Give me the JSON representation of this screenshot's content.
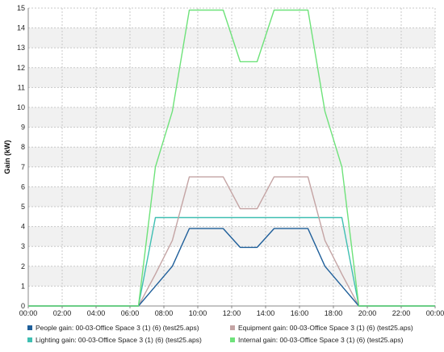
{
  "chart_data": {
    "type": "line",
    "title": "",
    "xlabel": "",
    "ylabel": "Gain (kW)",
    "xlim": [
      0,
      24
    ],
    "ylim": [
      0,
      15
    ],
    "x_ticks": [
      "00:00",
      "02:00",
      "04:00",
      "06:00",
      "08:00",
      "10:00",
      "12:00",
      "14:00",
      "16:00",
      "18:00",
      "20:00",
      "22:00",
      "00:00"
    ],
    "y_ticks": [
      "0",
      "1",
      "2",
      "3",
      "4",
      "5",
      "6",
      "7",
      "8",
      "9",
      "10",
      "11",
      "12",
      "13",
      "14",
      "15"
    ],
    "grid": true,
    "legend_position": "bottom",
    "x": [
      0,
      1,
      2,
      3,
      4,
      5,
      6,
      6.5,
      7.5,
      8.5,
      9.5,
      10.5,
      11.5,
      12.5,
      13.5,
      14.5,
      15.5,
      16.5,
      17.5,
      18.5,
      19.5,
      20,
      21,
      22,
      23,
      24
    ],
    "series": [
      {
        "name": "People gain: 00-03-Office Space 3 (1) (6) (test25.aps)",
        "color": "#1f5f9a",
        "values": [
          0,
          0,
          0,
          0,
          0,
          0,
          0,
          0,
          1.0,
          2.0,
          3.9,
          3.9,
          3.9,
          2.95,
          2.95,
          3.9,
          3.9,
          3.9,
          2.0,
          1.0,
          0,
          0,
          0,
          0,
          0,
          0
        ]
      },
      {
        "name": "Equipment gain: 00-03-Office Space 3 (1) (6) (test25.aps)",
        "color": "#c4a4a4",
        "values": [
          0,
          0,
          0,
          0,
          0,
          0,
          0,
          0,
          1.6,
          3.3,
          6.5,
          6.5,
          6.5,
          4.9,
          4.9,
          6.5,
          6.5,
          6.5,
          3.3,
          1.6,
          0,
          0,
          0,
          0,
          0,
          0
        ]
      },
      {
        "name": "Lighting gain: 00-03-Office Space 3 (1) (6) (test25.aps)",
        "color": "#3fbfb2",
        "values": [
          0,
          0,
          0,
          0,
          0,
          0,
          0,
          0,
          4.45,
          4.45,
          4.45,
          4.45,
          4.45,
          4.45,
          4.45,
          4.45,
          4.45,
          4.45,
          4.45,
          4.45,
          0,
          0,
          0,
          0,
          0,
          0
        ]
      },
      {
        "name": "Internal gain: 00-03-Office Space 3 (1) (6) (test25.aps)",
        "color": "#6ee27a",
        "values": [
          0,
          0,
          0,
          0,
          0,
          0,
          0,
          0,
          7.0,
          9.8,
          14.9,
          14.9,
          14.9,
          12.3,
          12.3,
          14.9,
          14.9,
          14.9,
          9.8,
          7.0,
          0,
          0,
          0,
          0,
          0,
          0
        ]
      }
    ]
  }
}
